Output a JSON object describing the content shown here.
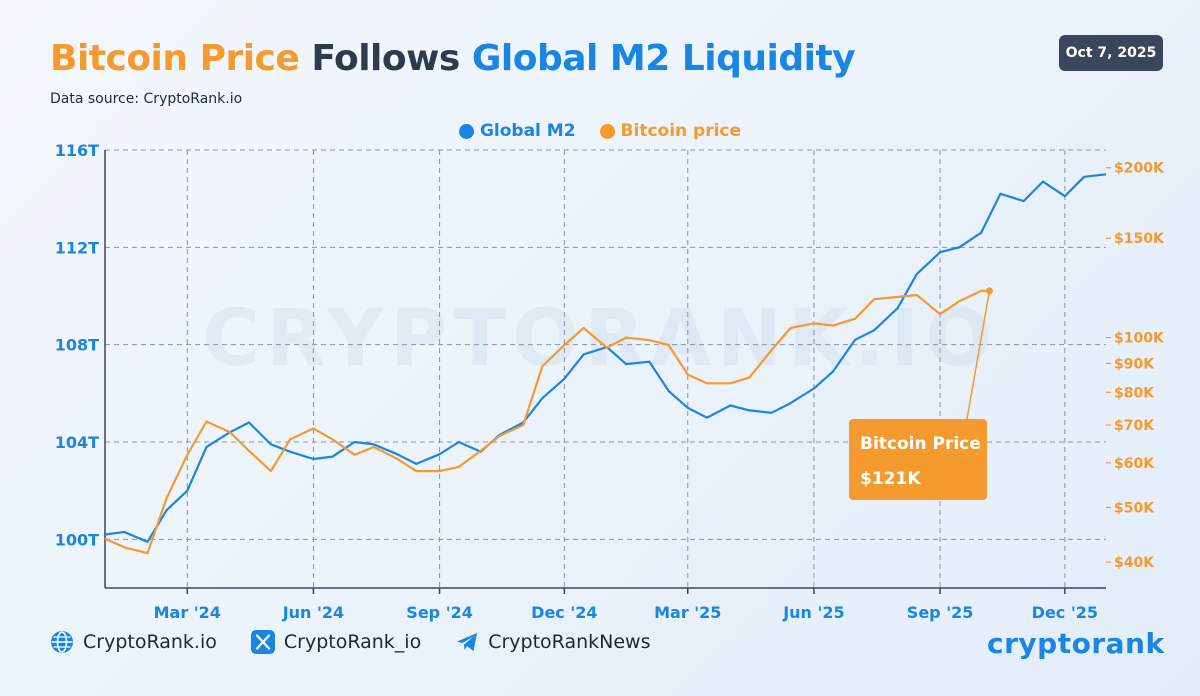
{
  "header": {
    "title_part1": "Bitcoin Price",
    "title_part2": "Follows",
    "title_part3": "Global M2 Liquidity",
    "subtitle": "Data source: CryptoRank.io",
    "date": "Oct 7, 2025"
  },
  "watermark": "CRYPTORANK.IO",
  "callout": {
    "label": "Bitcoin Price",
    "value": "$121K"
  },
  "footer": {
    "website": "CryptoRank.io",
    "x_handle": "CryptoRank_io",
    "telegram": "CryptoRankNews",
    "brand": "cryptorank"
  },
  "colors": {
    "m2": "#1a85e3",
    "btc": "#f59a2f",
    "title_dark": "#2f3a4d",
    "axis": "#3a4659"
  },
  "icons": [
    "globe-icon",
    "x-logo-icon",
    "telegram-icon"
  ],
  "chart_data": {
    "type": "line",
    "legend": [
      "Global M2",
      "Bitcoin price"
    ],
    "legend_position": "top-center",
    "grid": true,
    "x_axis": {
      "ticks": [
        "Mar '24",
        "Jun '24",
        "Sep '24",
        "Dec '24",
        "Mar '25",
        "Jun '25",
        "Sep '25",
        "Dec '25"
      ],
      "range": [
        "2024-01-01",
        "2025-12-31"
      ]
    },
    "y_left": {
      "ticks": [
        "100T",
        "104T",
        "108T",
        "112T",
        "116T"
      ],
      "tick_values": [
        100,
        104,
        108,
        112,
        116
      ],
      "range": [
        98,
        116
      ],
      "unit": "trillion USD"
    },
    "y_right": {
      "scale": "log",
      "ticks": [
        "$40K",
        "$50K",
        "$60K",
        "$70K",
        "$80K",
        "$90K",
        "$100K",
        "$150K",
        "$200K"
      ],
      "tick_values": [
        40000,
        50000,
        60000,
        70000,
        80000,
        90000,
        100000,
        150000,
        200000
      ],
      "range": [
        36000,
        215000
      ]
    },
    "series": [
      {
        "name": "Global M2",
        "x": [
          "2024-01-01",
          "2024-01-15",
          "2024-02-01",
          "2024-02-15",
          "2024-03-01",
          "2024-03-15",
          "2024-04-01",
          "2024-04-15",
          "2024-05-01",
          "2024-05-15",
          "2024-06-01",
          "2024-06-15",
          "2024-07-01",
          "2024-07-15",
          "2024-08-01",
          "2024-08-15",
          "2024-09-01",
          "2024-09-15",
          "2024-10-01",
          "2024-10-15",
          "2024-11-01",
          "2024-11-15",
          "2024-12-01",
          "2024-12-15",
          "2025-01-01",
          "2025-01-15",
          "2025-02-01",
          "2025-02-15",
          "2025-03-01",
          "2025-03-15",
          "2025-04-01",
          "2025-04-15",
          "2025-05-01",
          "2025-05-15",
          "2025-06-01",
          "2025-06-15",
          "2025-07-01",
          "2025-07-15",
          "2025-08-01",
          "2025-08-15",
          "2025-09-01",
          "2025-09-15",
          "2025-10-01",
          "2025-10-15",
          "2025-11-01",
          "2025-11-15",
          "2025-12-01",
          "2025-12-15",
          "2025-12-31"
        ],
        "values": [
          100.2,
          100.3,
          99.9,
          101.2,
          102.0,
          103.8,
          104.4,
          104.8,
          103.9,
          103.6,
          103.3,
          103.4,
          104.0,
          103.9,
          103.5,
          103.1,
          103.5,
          104.0,
          103.6,
          104.3,
          104.8,
          105.8,
          106.6,
          107.6,
          107.9,
          107.2,
          107.3,
          106.1,
          105.4,
          105.0,
          105.5,
          105.3,
          105.2,
          105.6,
          106.2,
          106.9,
          108.2,
          108.6,
          109.5,
          110.9,
          111.8,
          112.0,
          112.6,
          114.2,
          113.9,
          114.7,
          114.1,
          114.9,
          115.0
        ]
      },
      {
        "name": "Bitcoin price",
        "x": [
          "2024-01-01",
          "2024-01-15",
          "2024-02-01",
          "2024-02-15",
          "2024-03-01",
          "2024-03-15",
          "2024-04-01",
          "2024-04-15",
          "2024-05-01",
          "2024-05-15",
          "2024-06-01",
          "2024-06-15",
          "2024-07-01",
          "2024-07-15",
          "2024-08-01",
          "2024-08-15",
          "2024-09-01",
          "2024-09-15",
          "2024-10-01",
          "2024-10-15",
          "2024-11-01",
          "2024-11-15",
          "2024-12-01",
          "2024-12-15",
          "2025-01-01",
          "2025-01-15",
          "2025-02-01",
          "2025-02-15",
          "2025-03-01",
          "2025-03-15",
          "2025-04-01",
          "2025-04-15",
          "2025-05-01",
          "2025-05-15",
          "2025-06-01",
          "2025-06-15",
          "2025-07-01",
          "2025-07-15",
          "2025-08-01",
          "2025-08-15",
          "2025-09-01",
          "2025-09-15",
          "2025-10-01",
          "2025-10-07"
        ],
        "values": [
          44000,
          42500,
          41500,
          52000,
          62000,
          71000,
          68000,
          63000,
          58000,
          66000,
          69000,
          66000,
          62000,
          64000,
          61000,
          58000,
          58000,
          59000,
          63000,
          67000,
          70000,
          89000,
          97000,
          104000,
          96000,
          100000,
          99000,
          97000,
          86000,
          83000,
          83000,
          85000,
          95000,
          104000,
          106000,
          105000,
          108000,
          117000,
          118000,
          119000,
          110000,
          116000,
          121000,
          121000
        ]
      }
    ]
  }
}
